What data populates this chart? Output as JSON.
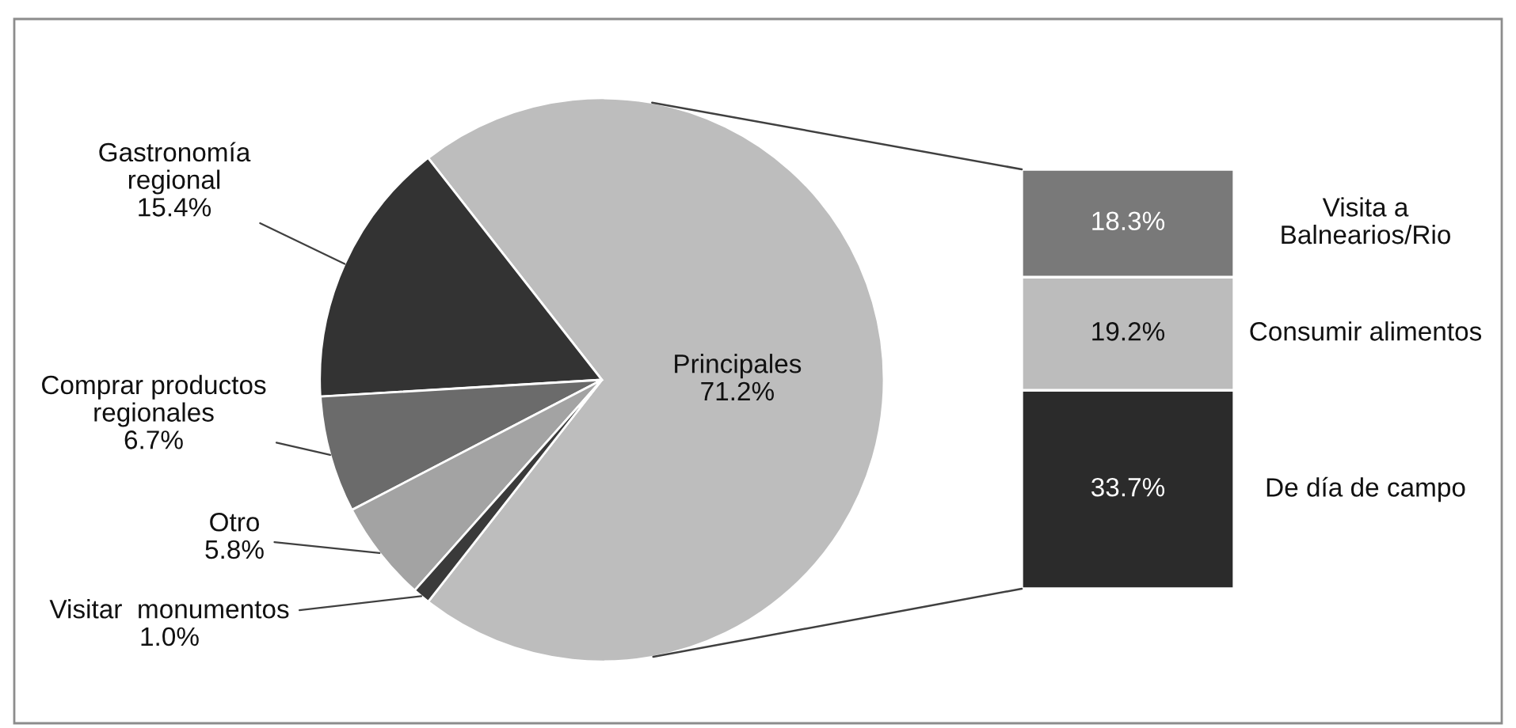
{
  "chart_data": [
    {
      "type": "pie",
      "categories": [
        "Principales",
        "Gastronomía regional",
        "Comprar productos regionales",
        "Otro",
        "Visitar  monumentos"
      ],
      "values": [
        71.2,
        15.4,
        6.7,
        5.8,
        1.0
      ],
      "colors": [
        "#bdbdbd",
        "#333333",
        "#6b6b6b",
        "#a3a3a3",
        "#3a3a3a"
      ],
      "value_labels": [
        "71.2%",
        "15.4%",
        "6.7%",
        "5.8%",
        "1.0%"
      ]
    },
    {
      "type": "bar",
      "stacked": true,
      "categories": [
        null
      ],
      "series": [
        {
          "name": "De día de campo",
          "color": "#2b2b2b",
          "values": [
            33.7
          ],
          "value_labels": [
            "33.7%"
          ]
        },
        {
          "name": "Consumir alimentos",
          "color": "#bcbcbc",
          "values": [
            19.2
          ],
          "value_labels": [
            "19.2%"
          ]
        },
        {
          "name": "Visita a Balnearios/Rio",
          "color": "#797979",
          "values": [
            18.3
          ],
          "value_labels": [
            "18.3%"
          ]
        }
      ]
    }
  ]
}
